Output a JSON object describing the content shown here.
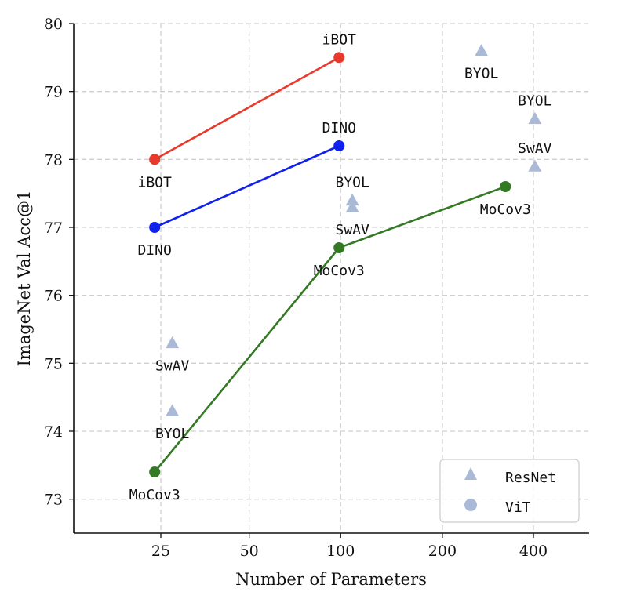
{
  "chart_data": {
    "type": "scatter",
    "xlabel": "Number of Parameters",
    "ylabel": "ImageNet Val Acc@1",
    "xscale": "log",
    "grid": true,
    "legend_position": "lower-right",
    "x_ticks": [
      {
        "value": 22,
        "label": "25"
      },
      {
        "value": 43,
        "label": "50"
      },
      {
        "value": 86,
        "label": "100"
      },
      {
        "value": 186,
        "label": "200"
      },
      {
        "value": 371,
        "label": "400"
      }
    ],
    "y_ticks": [
      73,
      74,
      75,
      76,
      77,
      78,
      79,
      80
    ],
    "ylim": [
      72.5,
      80
    ],
    "vit_lines": [
      {
        "method": "iBOT",
        "color": "#e8392a",
        "points": [
          {
            "x": 21,
            "y": 78.0,
            "label": "iBOT",
            "label_pos": "below"
          },
          {
            "x": 85,
            "y": 79.5,
            "label": "iBOT",
            "label_pos": "above"
          }
        ]
      },
      {
        "method": "DINO",
        "color": "#1020ee",
        "points": [
          {
            "x": 21,
            "y": 77.0,
            "label": "DINO",
            "label_pos": "below"
          },
          {
            "x": 85,
            "y": 78.2,
            "label": "DINO",
            "label_pos": "above"
          }
        ]
      },
      {
        "method": "MoCov3",
        "color": "#347a25",
        "points": [
          {
            "x": 21,
            "y": 73.4,
            "label": "MoCov3",
            "label_pos": "below"
          },
          {
            "x": 85,
            "y": 76.7,
            "label": "MoCov3",
            "label_pos": "below"
          },
          {
            "x": 300,
            "y": 77.6,
            "label": "MoCov3",
            "label_pos": "below"
          }
        ]
      }
    ],
    "resnet_points": [
      {
        "method": "SwAV",
        "x": 24,
        "y": 75.3,
        "label": "SwAV",
        "label_pos": "below"
      },
      {
        "method": "BYOL",
        "x": 24,
        "y": 74.3,
        "label": "BYOL",
        "label_pos": "below"
      },
      {
        "method": "BYOL",
        "x": 94,
        "y": 77.4,
        "label": "BYOL",
        "label_pos": "above"
      },
      {
        "method": "SwAV",
        "x": 94,
        "y": 77.3,
        "label": "SwAV",
        "label_pos": "below"
      },
      {
        "method": "BYOL",
        "x": 250,
        "y": 79.6,
        "label": "BYOL",
        "label_pos": "below"
      },
      {
        "method": "BYOL",
        "x": 375,
        "y": 78.6,
        "label": "BYOL",
        "label_pos": "above"
      },
      {
        "method": "SwAV",
        "x": 375,
        "y": 77.9,
        "label": "SwAV",
        "label_pos": "above"
      }
    ],
    "resnet_color": "#a9b9d6",
    "legend": [
      {
        "label": "ResNet",
        "marker": "triangle"
      },
      {
        "label": "ViT",
        "marker": "circle"
      }
    ]
  }
}
